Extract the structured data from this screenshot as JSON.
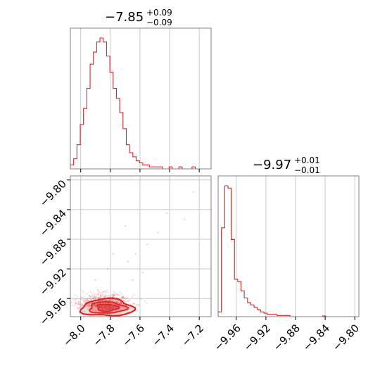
{
  "colors": {
    "series": "#d62728",
    "frame": "#808080",
    "grid": "#c8c8c8"
  },
  "chart_data": [
    {
      "type": "histogram",
      "panel": "marginal-param1",
      "title": {
        "median": "−7.85",
        "plus": "+0.09",
        "minus": "−0.09"
      },
      "xlim": [
        -8.07,
        -7.12
      ],
      "x_ticks": [
        -8.0,
        -7.8,
        -7.6,
        -7.4,
        -7.2
      ],
      "grid": true,
      "bin_edges_start": -8.07,
      "bin_width": 0.0222,
      "counts": [
        2,
        5,
        12,
        22,
        30,
        40,
        52,
        58,
        63,
        65,
        63,
        56,
        48,
        40,
        35,
        28,
        20,
        12,
        8,
        6,
        4,
        3,
        2,
        2,
        1,
        1,
        1,
        1,
        0,
        0,
        1,
        0,
        0,
        1,
        0,
        0,
        0,
        1,
        0,
        0,
        0,
        0,
        0
      ]
    },
    {
      "type": "histogram",
      "panel": "marginal-param2",
      "title": {
        "median": "−9.97",
        "plus": "+0.01",
        "minus": "−0.01"
      },
      "xlim": [
        -9.9845,
        -9.7945
      ],
      "x_ticks": [
        "−9.96",
        "−9.92",
        "−9.88",
        "−9.84",
        "−9.80"
      ],
      "x_tick_values": [
        -9.96,
        -9.92,
        -9.88,
        -9.84,
        -9.8
      ],
      "grid": true,
      "bin_edges_start": -9.9845,
      "bin_width": 0.00441,
      "counts": [
        2,
        38,
        56,
        55,
        33,
        16,
        15,
        11,
        8,
        6,
        5,
        4,
        3,
        2,
        1.5,
        1,
        1,
        1,
        0.5,
        0.5,
        0.5,
        0.5,
        0,
        0,
        0,
        0,
        0,
        0,
        0,
        0,
        0,
        0,
        0.3,
        0,
        0,
        0,
        0,
        0,
        0,
        0,
        0,
        0,
        0
      ]
    },
    {
      "type": "scatter-contour",
      "panel": "joint",
      "xlim": [
        -8.07,
        -7.12
      ],
      "ylim": [
        -9.9845,
        -9.7945
      ],
      "x_ticks": [
        "−8.0",
        "−7.8",
        "−7.6",
        "−7.4",
        "−7.2"
      ],
      "x_tick_values": [
        -8.0,
        -7.8,
        -7.6,
        -7.4,
        -7.2
      ],
      "y_ticks": [
        "−9.80",
        "−9.84",
        "−9.88",
        "−9.92",
        "−9.96"
      ],
      "y_tick_values": [
        -9.8,
        -9.84,
        -9.88,
        -9.92,
        -9.96
      ],
      "grid": true,
      "center": [
        -7.85,
        -9.97
      ],
      "spread": [
        0.09,
        0.008
      ],
      "n_points": 700,
      "outliers": [
        [
          -7.24,
          -9.816
        ],
        [
          -7.3,
          -9.853
        ],
        [
          -7.42,
          -9.845
        ],
        [
          -7.48,
          -9.871
        ],
        [
          -7.55,
          -9.887
        ],
        [
          -7.63,
          -9.9
        ],
        [
          -7.7,
          -9.862
        ],
        [
          -7.58,
          -9.925
        ],
        [
          -7.65,
          -9.935
        ],
        [
          -7.68,
          -9.91
        ],
        [
          -7.78,
          -9.9
        ],
        [
          -7.82,
          -9.92
        ],
        [
          -7.9,
          -9.935
        ]
      ]
    }
  ]
}
